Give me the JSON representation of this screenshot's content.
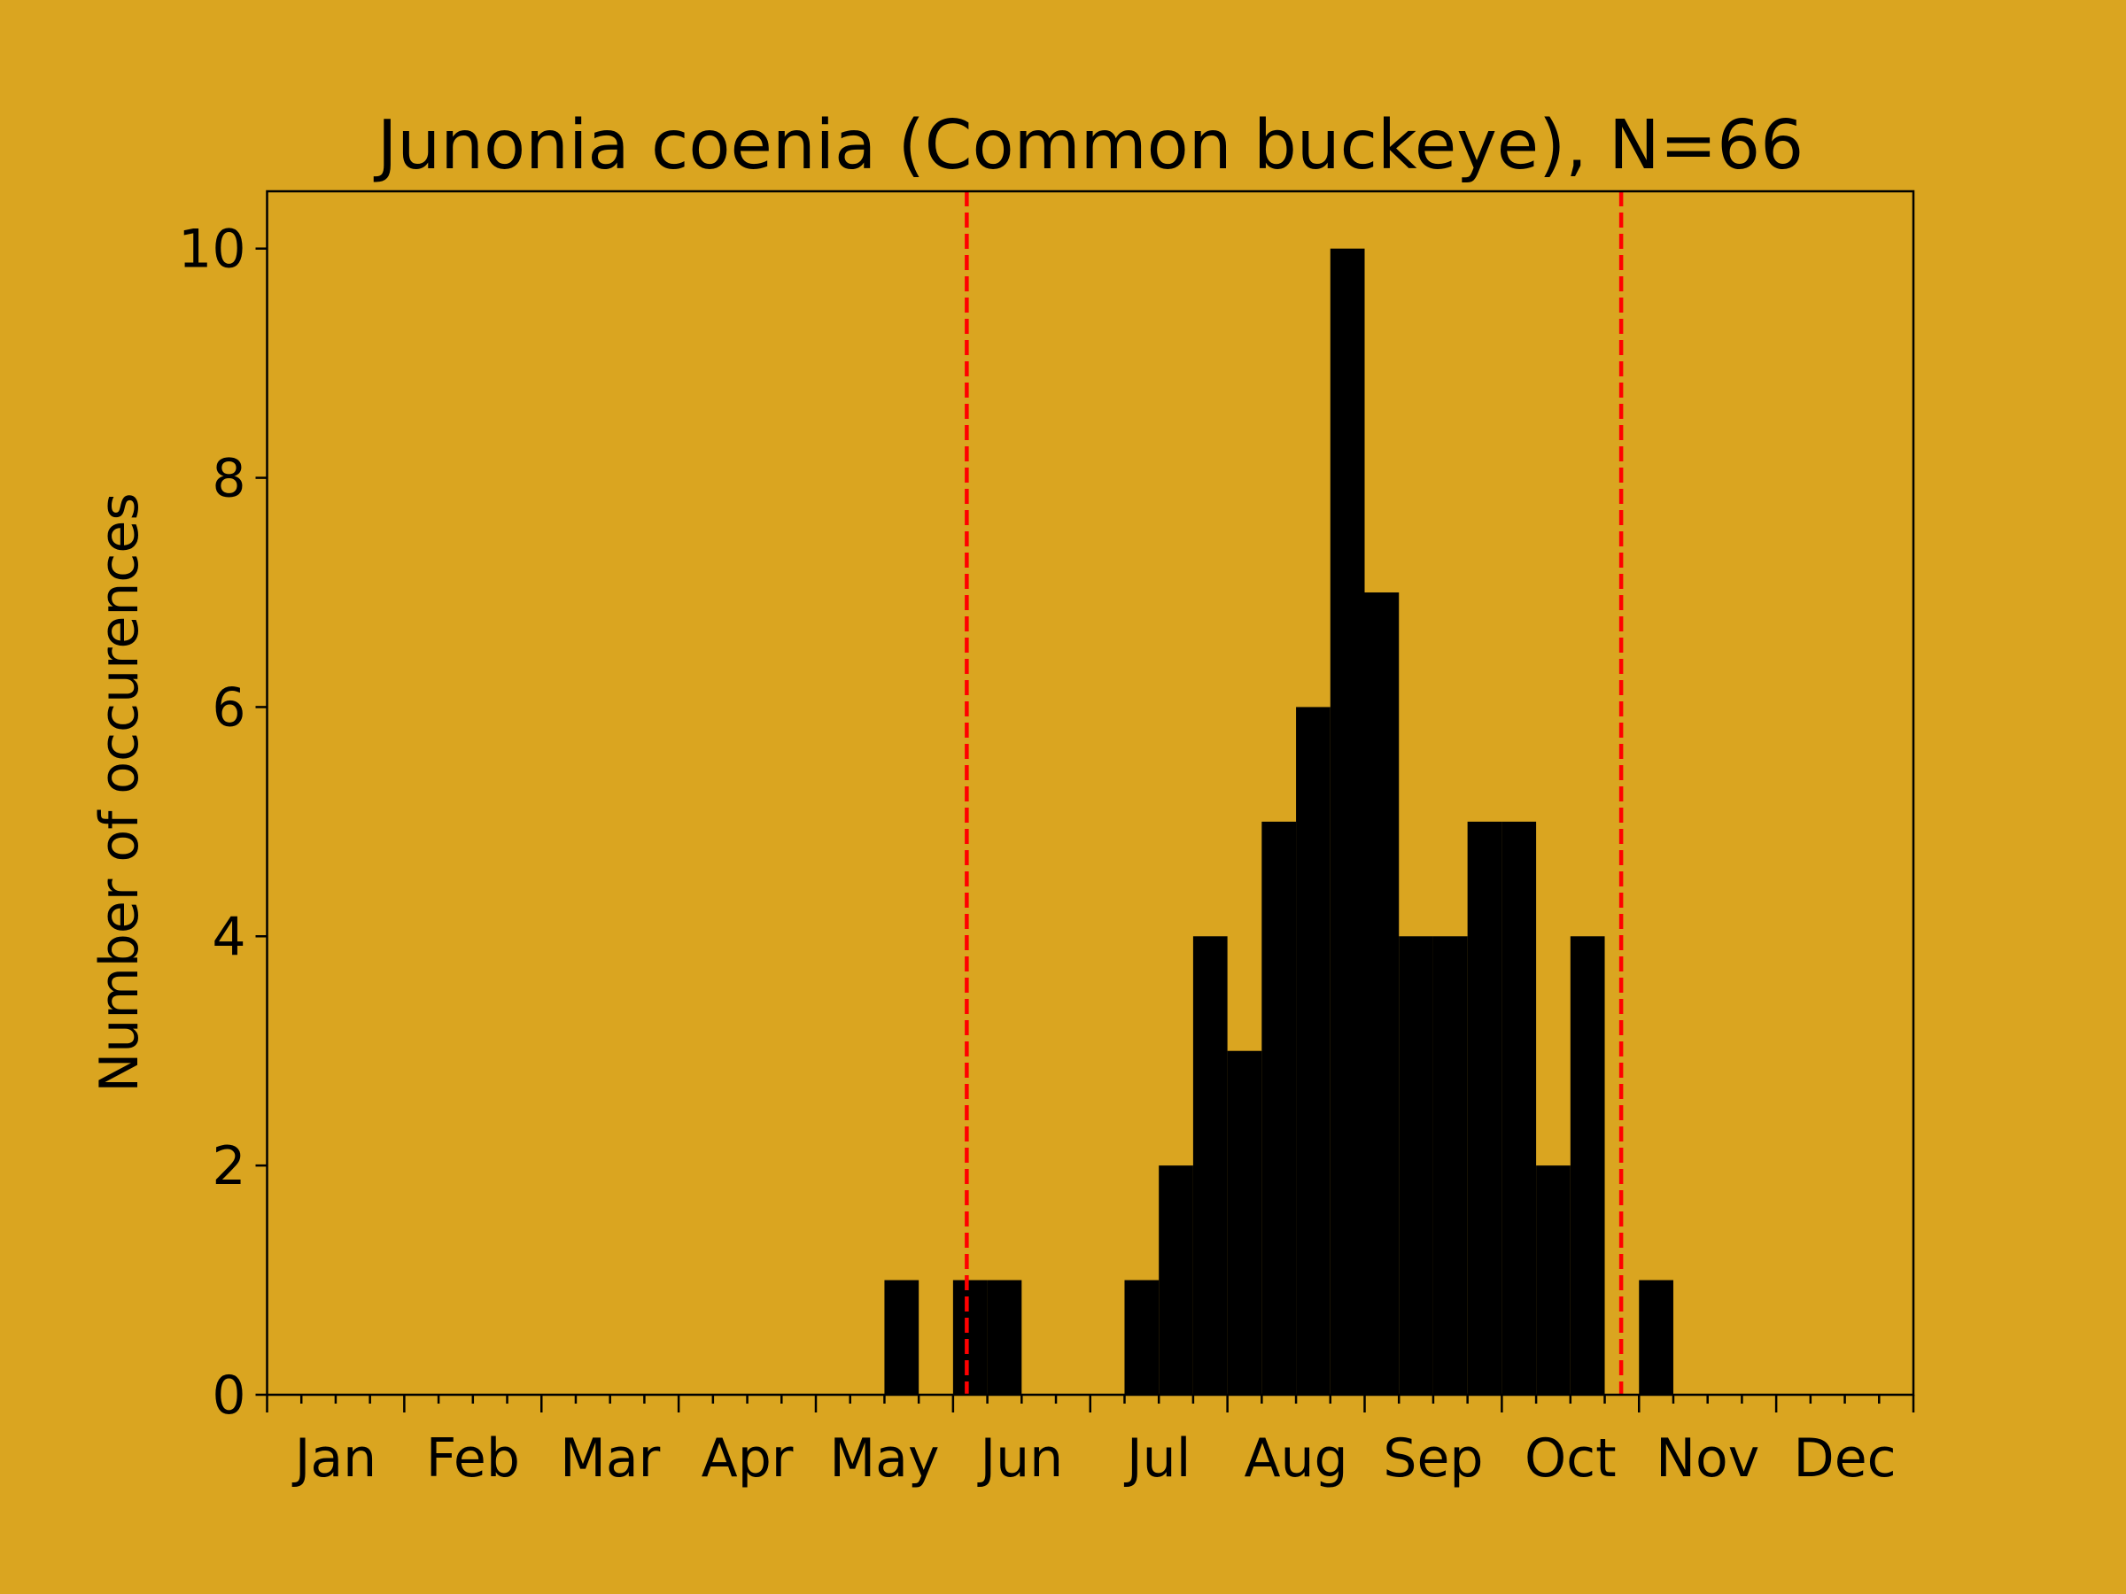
{
  "chart_data": {
    "type": "bar",
    "title": "Junonia coenia (Common buckeye), N=66",
    "xlabel": "",
    "ylabel": "Number of occurences",
    "x_unit": "month (0 = start of Jan, 12 = end of Dec), bins of 1/4 month",
    "xlim": [
      0,
      12
    ],
    "ylim": [
      0,
      10.5
    ],
    "yticks": [
      0,
      2,
      4,
      6,
      8,
      10
    ],
    "month_labels": [
      "Jan",
      "Feb",
      "Mar",
      "Apr",
      "May",
      "Jun",
      "Jul",
      "Aug",
      "Sep",
      "Oct",
      "Nov",
      "Dec"
    ],
    "bin_width": 0.25,
    "bins": [
      {
        "start": 4.5,
        "count": 1
      },
      {
        "start": 5.0,
        "count": 1
      },
      {
        "start": 5.25,
        "count": 1
      },
      {
        "start": 6.25,
        "count": 1
      },
      {
        "start": 6.5,
        "count": 2
      },
      {
        "start": 6.75,
        "count": 4
      },
      {
        "start": 7.0,
        "count": 3
      },
      {
        "start": 7.25,
        "count": 5
      },
      {
        "start": 7.5,
        "count": 6
      },
      {
        "start": 7.75,
        "count": 10
      },
      {
        "start": 8.0,
        "count": 7
      },
      {
        "start": 8.25,
        "count": 4
      },
      {
        "start": 8.5,
        "count": 4
      },
      {
        "start": 8.75,
        "count": 5
      },
      {
        "start": 9.0,
        "count": 5
      },
      {
        "start": 9.25,
        "count": 2
      },
      {
        "start": 9.5,
        "count": 4
      },
      {
        "start": 10.0,
        "count": 1
      }
    ],
    "vlines": [
      5.1,
      9.87
    ],
    "grid": false,
    "colors": {
      "background": "#DAA520",
      "bars": "#000000",
      "vlines": "#FF0000"
    }
  }
}
